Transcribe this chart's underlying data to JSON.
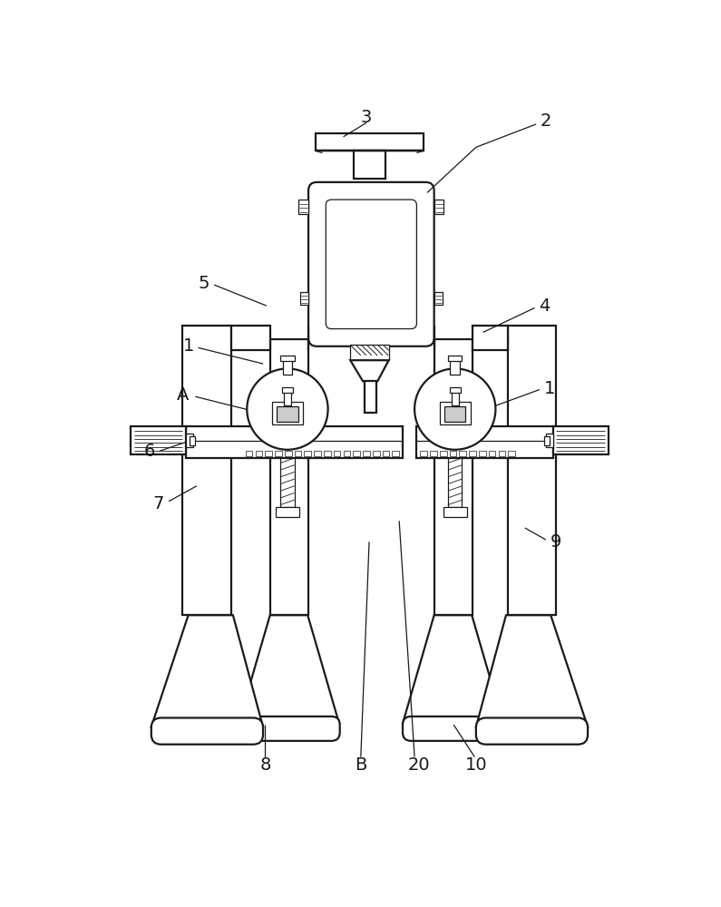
{
  "bg_color": "#ffffff",
  "line_color": "#1a1a1a",
  "lw_main": 1.6,
  "lw_thin": 0.9,
  "lw_hair": 0.5,
  "label_fs": 14
}
